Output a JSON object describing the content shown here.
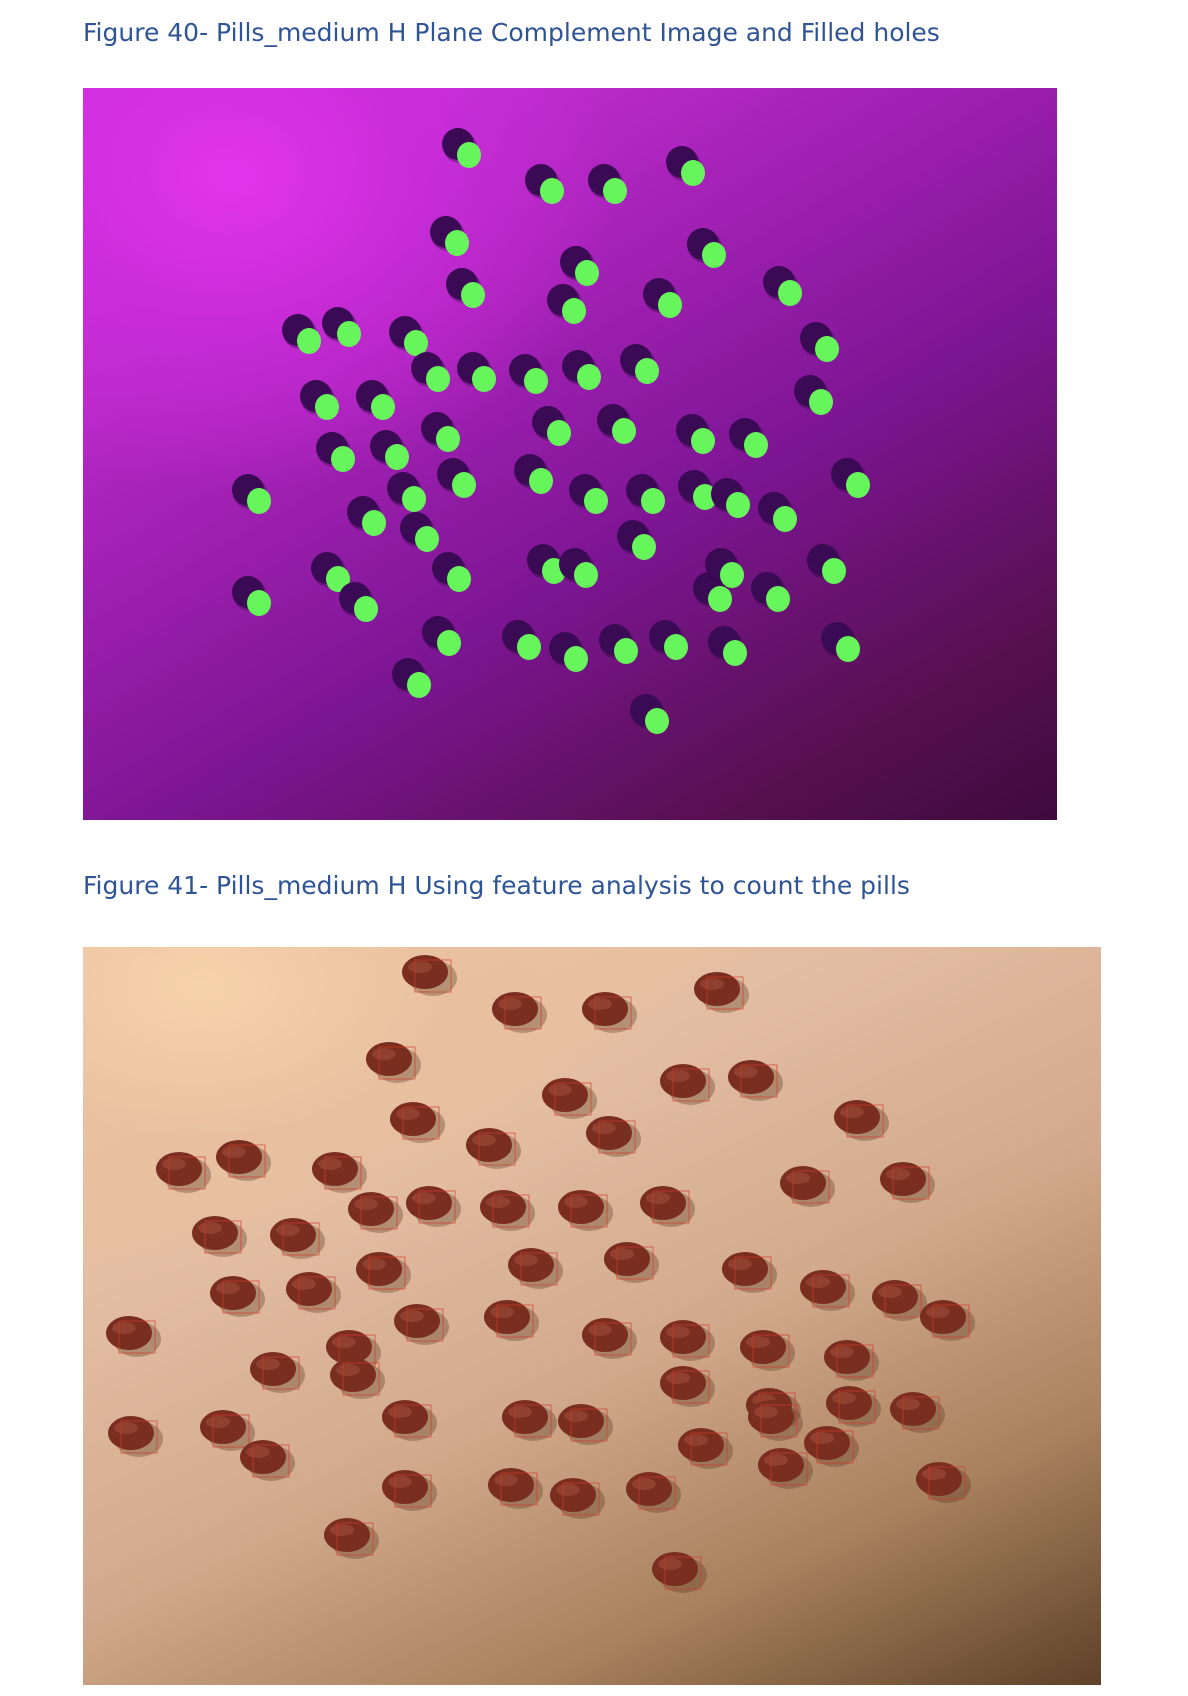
{
  "figure40": {
    "caption": "Figure 40- Pills_medium H Plane Complement Image and Filled holes",
    "image": "magenta-background-pills-green-fill",
    "colors": {
      "background_light": "#d93be6",
      "background_dark": "#3f0a3f",
      "pill_dark": "#3a0a55",
      "fill_green": "#66f55a"
    }
  },
  "figure41": {
    "caption": "Figure 41- Pills_medium H Using feature analysis to count the pills",
    "image": "beige-background-brown-pills-red-boxes",
    "colors": {
      "background_light": "#f1c89e",
      "background_dark": "#5e4128",
      "pill": "#7a2e20",
      "box": "#d23a2a"
    }
  }
}
